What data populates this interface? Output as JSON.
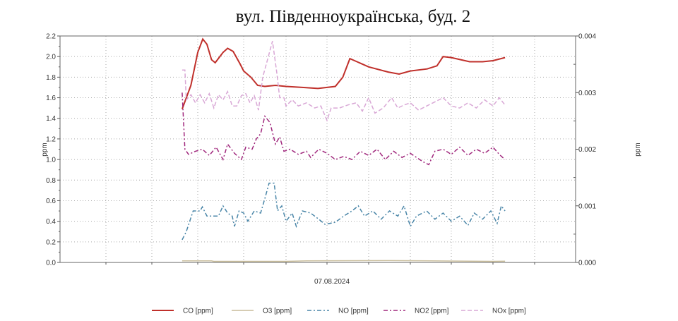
{
  "chart_data": {
    "type": "line",
    "title": "вул. Південноукраїнська, буд. 2",
    "xlabel": "07.08.2024",
    "ylabel": "ppm",
    "y2label": "ppm",
    "xlim": [
      0,
      12
    ],
    "ylim": [
      0,
      2.2
    ],
    "y2lim": [
      0,
      0.004
    ],
    "yticks": [
      "0.0",
      "0.2",
      "0.4",
      "0.6",
      "0.8",
      "1.0",
      "1.2",
      "1.4",
      "1.6",
      "1.8",
      "2.0",
      "2.2"
    ],
    "y2ticks": [
      "0.000",
      "0.001",
      "0.002",
      "0.003",
      "0.004"
    ],
    "grid": true,
    "legend_position": "bottom",
    "series": [
      {
        "name": "CO [ppm]",
        "color": "#c0302b",
        "dash": "solid",
        "points": [
          [
            2.66,
            1.49
          ],
          [
            2.85,
            1.72
          ],
          [
            3.0,
            2.04
          ],
          [
            3.11,
            2.17
          ],
          [
            3.2,
            2.12
          ],
          [
            3.3,
            1.97
          ],
          [
            3.38,
            1.94
          ],
          [
            3.55,
            2.04
          ],
          [
            3.65,
            2.08
          ],
          [
            3.77,
            2.05
          ],
          [
            3.92,
            1.93
          ],
          [
            4.0,
            1.86
          ],
          [
            4.17,
            1.8
          ],
          [
            4.33,
            1.72
          ],
          [
            4.5,
            1.71
          ],
          [
            4.75,
            1.72
          ],
          [
            5.0,
            1.71
          ],
          [
            5.43,
            1.7
          ],
          [
            5.78,
            1.69
          ],
          [
            6.2,
            1.71
          ],
          [
            6.38,
            1.8
          ],
          [
            6.55,
            1.98
          ],
          [
            6.72,
            1.95
          ],
          [
            7.0,
            1.9
          ],
          [
            7.47,
            1.85
          ],
          [
            7.73,
            1.83
          ],
          [
            8.0,
            1.86
          ],
          [
            8.41,
            1.88
          ],
          [
            8.65,
            1.91
          ],
          [
            8.8,
            2.0
          ],
          [
            9.0,
            1.99
          ],
          [
            9.44,
            1.95
          ],
          [
            9.75,
            1.95
          ],
          [
            10.0,
            1.96
          ],
          [
            10.29,
            1.99
          ]
        ]
      },
      {
        "name": "O3 [ppm]",
        "color": "#c8bc9a",
        "dash": "solid",
        "points": [
          [
            2.66,
            0.015
          ],
          [
            3.3,
            0.015
          ],
          [
            3.35,
            0.01
          ],
          [
            5.0,
            0.01
          ],
          [
            5.5,
            0.015
          ],
          [
            7.5,
            0.018
          ],
          [
            8.5,
            0.015
          ],
          [
            10.0,
            0.01
          ],
          [
            10.29,
            0.012
          ]
        ]
      },
      {
        "name": "NO [ppm]",
        "color": "#4a86a8",
        "dash": "dashdot",
        "points": [
          [
            2.66,
            0.22
          ],
          [
            2.75,
            0.3
          ],
          [
            2.9,
            0.5
          ],
          [
            3.05,
            0.5
          ],
          [
            3.1,
            0.54
          ],
          [
            3.2,
            0.45
          ],
          [
            3.45,
            0.45
          ],
          [
            3.55,
            0.55
          ],
          [
            3.65,
            0.48
          ],
          [
            3.75,
            0.45
          ],
          [
            3.8,
            0.35
          ],
          [
            3.9,
            0.5
          ],
          [
            4.0,
            0.48
          ],
          [
            4.1,
            0.4
          ],
          [
            4.25,
            0.5
          ],
          [
            4.4,
            0.48
          ],
          [
            4.5,
            0.62
          ],
          [
            4.6,
            0.77
          ],
          [
            4.72,
            0.77
          ],
          [
            4.8,
            0.5
          ],
          [
            4.9,
            0.55
          ],
          [
            5.0,
            0.4
          ],
          [
            5.15,
            0.48
          ],
          [
            5.25,
            0.35
          ],
          [
            5.4,
            0.5
          ],
          [
            5.6,
            0.48
          ],
          [
            5.8,
            0.42
          ],
          [
            5.95,
            0.37
          ],
          [
            6.2,
            0.39
          ],
          [
            6.4,
            0.45
          ],
          [
            6.6,
            0.5
          ],
          [
            6.75,
            0.55
          ],
          [
            6.9,
            0.45
          ],
          [
            7.1,
            0.5
          ],
          [
            7.3,
            0.42
          ],
          [
            7.5,
            0.5
          ],
          [
            7.7,
            0.45
          ],
          [
            7.85,
            0.55
          ],
          [
            8.0,
            0.35
          ],
          [
            8.15,
            0.45
          ],
          [
            8.4,
            0.5
          ],
          [
            8.6,
            0.42
          ],
          [
            8.8,
            0.48
          ],
          [
            9.0,
            0.4
          ],
          [
            9.2,
            0.45
          ],
          [
            9.4,
            0.36
          ],
          [
            9.55,
            0.48
          ],
          [
            9.75,
            0.42
          ],
          [
            9.95,
            0.5
          ],
          [
            10.1,
            0.38
          ],
          [
            10.2,
            0.55
          ],
          [
            10.29,
            0.5
          ]
        ]
      },
      {
        "name": "NO2 [ppm]",
        "color": "#a0287d",
        "dash": "dashdot",
        "points": [
          [
            2.66,
            1.65
          ],
          [
            2.72,
            1.1
          ],
          [
            2.8,
            1.05
          ],
          [
            2.95,
            1.08
          ],
          [
            3.1,
            1.1
          ],
          [
            3.25,
            1.04
          ],
          [
            3.4,
            1.12
          ],
          [
            3.55,
            1.0
          ],
          [
            3.65,
            1.15
          ],
          [
            3.8,
            1.06
          ],
          [
            3.95,
            1.0
          ],
          [
            4.05,
            1.12
          ],
          [
            4.2,
            1.1
          ],
          [
            4.3,
            1.2
          ],
          [
            4.4,
            1.25
          ],
          [
            4.5,
            1.42
          ],
          [
            4.62,
            1.36
          ],
          [
            4.75,
            1.15
          ],
          [
            4.85,
            1.22
          ],
          [
            4.95,
            1.08
          ],
          [
            5.1,
            1.1
          ],
          [
            5.3,
            1.05
          ],
          [
            5.5,
            1.08
          ],
          [
            5.6,
            1.02
          ],
          [
            5.8,
            1.1
          ],
          [
            6.0,
            1.06
          ],
          [
            6.2,
            1.0
          ],
          [
            6.4,
            1.03
          ],
          [
            6.6,
            1.0
          ],
          [
            6.8,
            1.08
          ],
          [
            7.0,
            1.04
          ],
          [
            7.2,
            1.1
          ],
          [
            7.4,
            1.0
          ],
          [
            7.6,
            1.08
          ],
          [
            7.8,
            1.02
          ],
          [
            8.0,
            1.06
          ],
          [
            8.3,
            0.98
          ],
          [
            8.45,
            0.95
          ],
          [
            8.6,
            1.08
          ],
          [
            8.8,
            1.1
          ],
          [
            9.0,
            1.05
          ],
          [
            9.2,
            1.12
          ],
          [
            9.4,
            1.04
          ],
          [
            9.6,
            1.1
          ],
          [
            9.8,
            1.06
          ],
          [
            10.0,
            1.12
          ],
          [
            10.15,
            1.05
          ],
          [
            10.29,
            1.0
          ]
        ]
      },
      {
        "name": "NOx [ppm]",
        "color": "#d9a8d6",
        "dash": "dash",
        "points": [
          [
            2.66,
            1.87
          ],
          [
            2.72,
            1.87
          ],
          [
            2.75,
            1.58
          ],
          [
            2.85,
            1.63
          ],
          [
            2.95,
            1.55
          ],
          [
            3.05,
            1.63
          ],
          [
            3.15,
            1.55
          ],
          [
            3.25,
            1.64
          ],
          [
            3.35,
            1.5
          ],
          [
            3.45,
            1.63
          ],
          [
            3.55,
            1.58
          ],
          [
            3.65,
            1.66
          ],
          [
            3.75,
            1.52
          ],
          [
            3.85,
            1.52
          ],
          [
            3.95,
            1.62
          ],
          [
            4.05,
            1.64
          ],
          [
            4.15,
            1.55
          ],
          [
            4.25,
            1.62
          ],
          [
            4.35,
            1.48
          ],
          [
            4.45,
            1.8
          ],
          [
            4.55,
            1.95
          ],
          [
            4.68,
            2.15
          ],
          [
            4.78,
            1.85
          ],
          [
            4.85,
            1.6
          ],
          [
            4.95,
            1.6
          ],
          [
            5.0,
            1.52
          ],
          [
            5.15,
            1.58
          ],
          [
            5.3,
            1.52
          ],
          [
            5.5,
            1.55
          ],
          [
            5.7,
            1.5
          ],
          [
            5.85,
            1.52
          ],
          [
            6.0,
            1.38
          ],
          [
            6.1,
            1.5
          ],
          [
            6.3,
            1.5
          ],
          [
            6.5,
            1.53
          ],
          [
            6.7,
            1.55
          ],
          [
            6.85,
            1.47
          ],
          [
            7.0,
            1.6
          ],
          [
            7.15,
            1.45
          ],
          [
            7.35,
            1.5
          ],
          [
            7.55,
            1.6
          ],
          [
            7.7,
            1.5
          ],
          [
            7.85,
            1.53
          ],
          [
            8.0,
            1.55
          ],
          [
            8.2,
            1.48
          ],
          [
            8.4,
            1.52
          ],
          [
            8.6,
            1.56
          ],
          [
            8.8,
            1.6
          ],
          [
            9.0,
            1.52
          ],
          [
            9.2,
            1.5
          ],
          [
            9.4,
            1.55
          ],
          [
            9.6,
            1.5
          ],
          [
            9.8,
            1.58
          ],
          [
            10.0,
            1.52
          ],
          [
            10.15,
            1.6
          ],
          [
            10.29,
            1.53
          ]
        ]
      }
    ]
  }
}
